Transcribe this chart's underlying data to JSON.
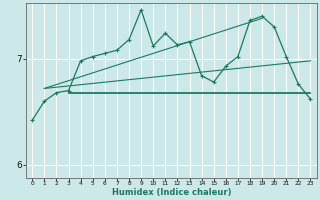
{
  "xlabel": "Humidex (Indice chaleur)",
  "xlim": [
    -0.5,
    23.5
  ],
  "ylim": [
    5.88,
    7.52
  ],
  "yticks": [
    6,
    7
  ],
  "xticks": [
    0,
    1,
    2,
    3,
    4,
    5,
    6,
    7,
    8,
    9,
    10,
    11,
    12,
    13,
    14,
    15,
    16,
    17,
    18,
    19,
    20,
    21,
    22,
    23
  ],
  "background_color": "#cde8e8",
  "grid_color": "#ffffff",
  "line_color": "#1a7a60",
  "flat_line": {
    "x": [
      3,
      23
    ],
    "y": [
      6.68,
      6.68
    ]
  },
  "diag_line1": {
    "x": [
      1,
      19
    ],
    "y": [
      6.72,
      7.38
    ]
  },
  "diag_line2": {
    "x": [
      1,
      23
    ],
    "y": [
      6.72,
      6.98
    ]
  },
  "main_curve_x": [
    0,
    1,
    2,
    3,
    4,
    5,
    6,
    7,
    8,
    9,
    10,
    11,
    12,
    13,
    14,
    15,
    16,
    17,
    18,
    19,
    20,
    21,
    22,
    23
  ],
  "main_curve_y": [
    6.42,
    6.6,
    6.68,
    6.7,
    6.98,
    7.02,
    7.05,
    7.08,
    7.18,
    7.46,
    7.12,
    7.24,
    7.13,
    7.16,
    6.84,
    6.78,
    6.93,
    7.02,
    7.36,
    7.4,
    7.3,
    7.02,
    6.76,
    6.62
  ]
}
